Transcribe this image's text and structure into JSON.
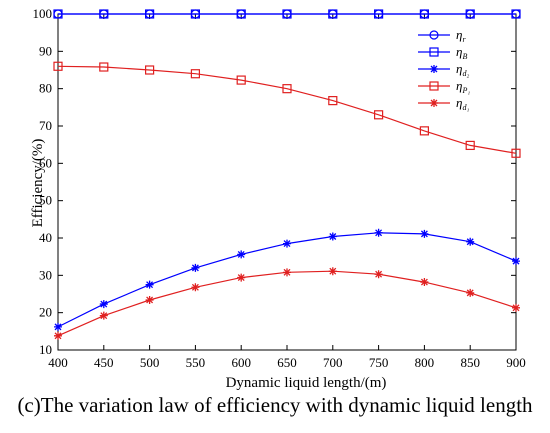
{
  "caption": "(c)The variation law of efficiency with dynamic liquid length",
  "chart_data": {
    "type": "line",
    "xlabel": "Dynamic liquid length/(m)",
    "ylabel": "Efficiency/(%)",
    "xlim": [
      400,
      900
    ],
    "ylim": [
      10,
      100
    ],
    "x_ticks": [
      400,
      450,
      500,
      550,
      600,
      650,
      700,
      750,
      800,
      850,
      900
    ],
    "y_ticks": [
      10,
      20,
      30,
      40,
      50,
      60,
      70,
      80,
      90,
      100
    ],
    "grid": false,
    "legend_position": "top-right",
    "x": [
      400,
      450,
      500,
      550,
      600,
      650,
      700,
      750,
      800,
      850,
      900
    ],
    "series": [
      {
        "name": "η",
        "sub": "r",
        "color": "#0000ff",
        "marker": "circle",
        "values": [
          100,
          100,
          100,
          100,
          100,
          100,
          100,
          100,
          100,
          100,
          100
        ]
      },
      {
        "name": "η",
        "sub": "B",
        "color": "#0000ff",
        "marker": "square",
        "values": [
          100,
          100,
          100,
          100,
          100,
          100,
          100,
          100,
          100,
          100,
          100
        ]
      },
      {
        "name": "η",
        "sub": "d₂",
        "color": "#0000ff",
        "marker": "star",
        "values": [
          16.2,
          22.3,
          27.5,
          32.0,
          35.6,
          38.5,
          40.4,
          41.4,
          41.1,
          39.0,
          33.8
        ]
      },
      {
        "name": "η",
        "sub": "P₁",
        "color": "#e02020",
        "marker": "square",
        "values": [
          86.0,
          85.8,
          85.0,
          84.0,
          82.3,
          80.0,
          76.8,
          73.0,
          68.7,
          64.8,
          62.7
        ]
      },
      {
        "name": "η",
        "sub": "d₁",
        "color": "#e02020",
        "marker": "star",
        "values": [
          13.8,
          19.2,
          23.4,
          26.8,
          29.4,
          30.8,
          31.1,
          30.3,
          28.2,
          25.3,
          21.3
        ]
      }
    ]
  }
}
